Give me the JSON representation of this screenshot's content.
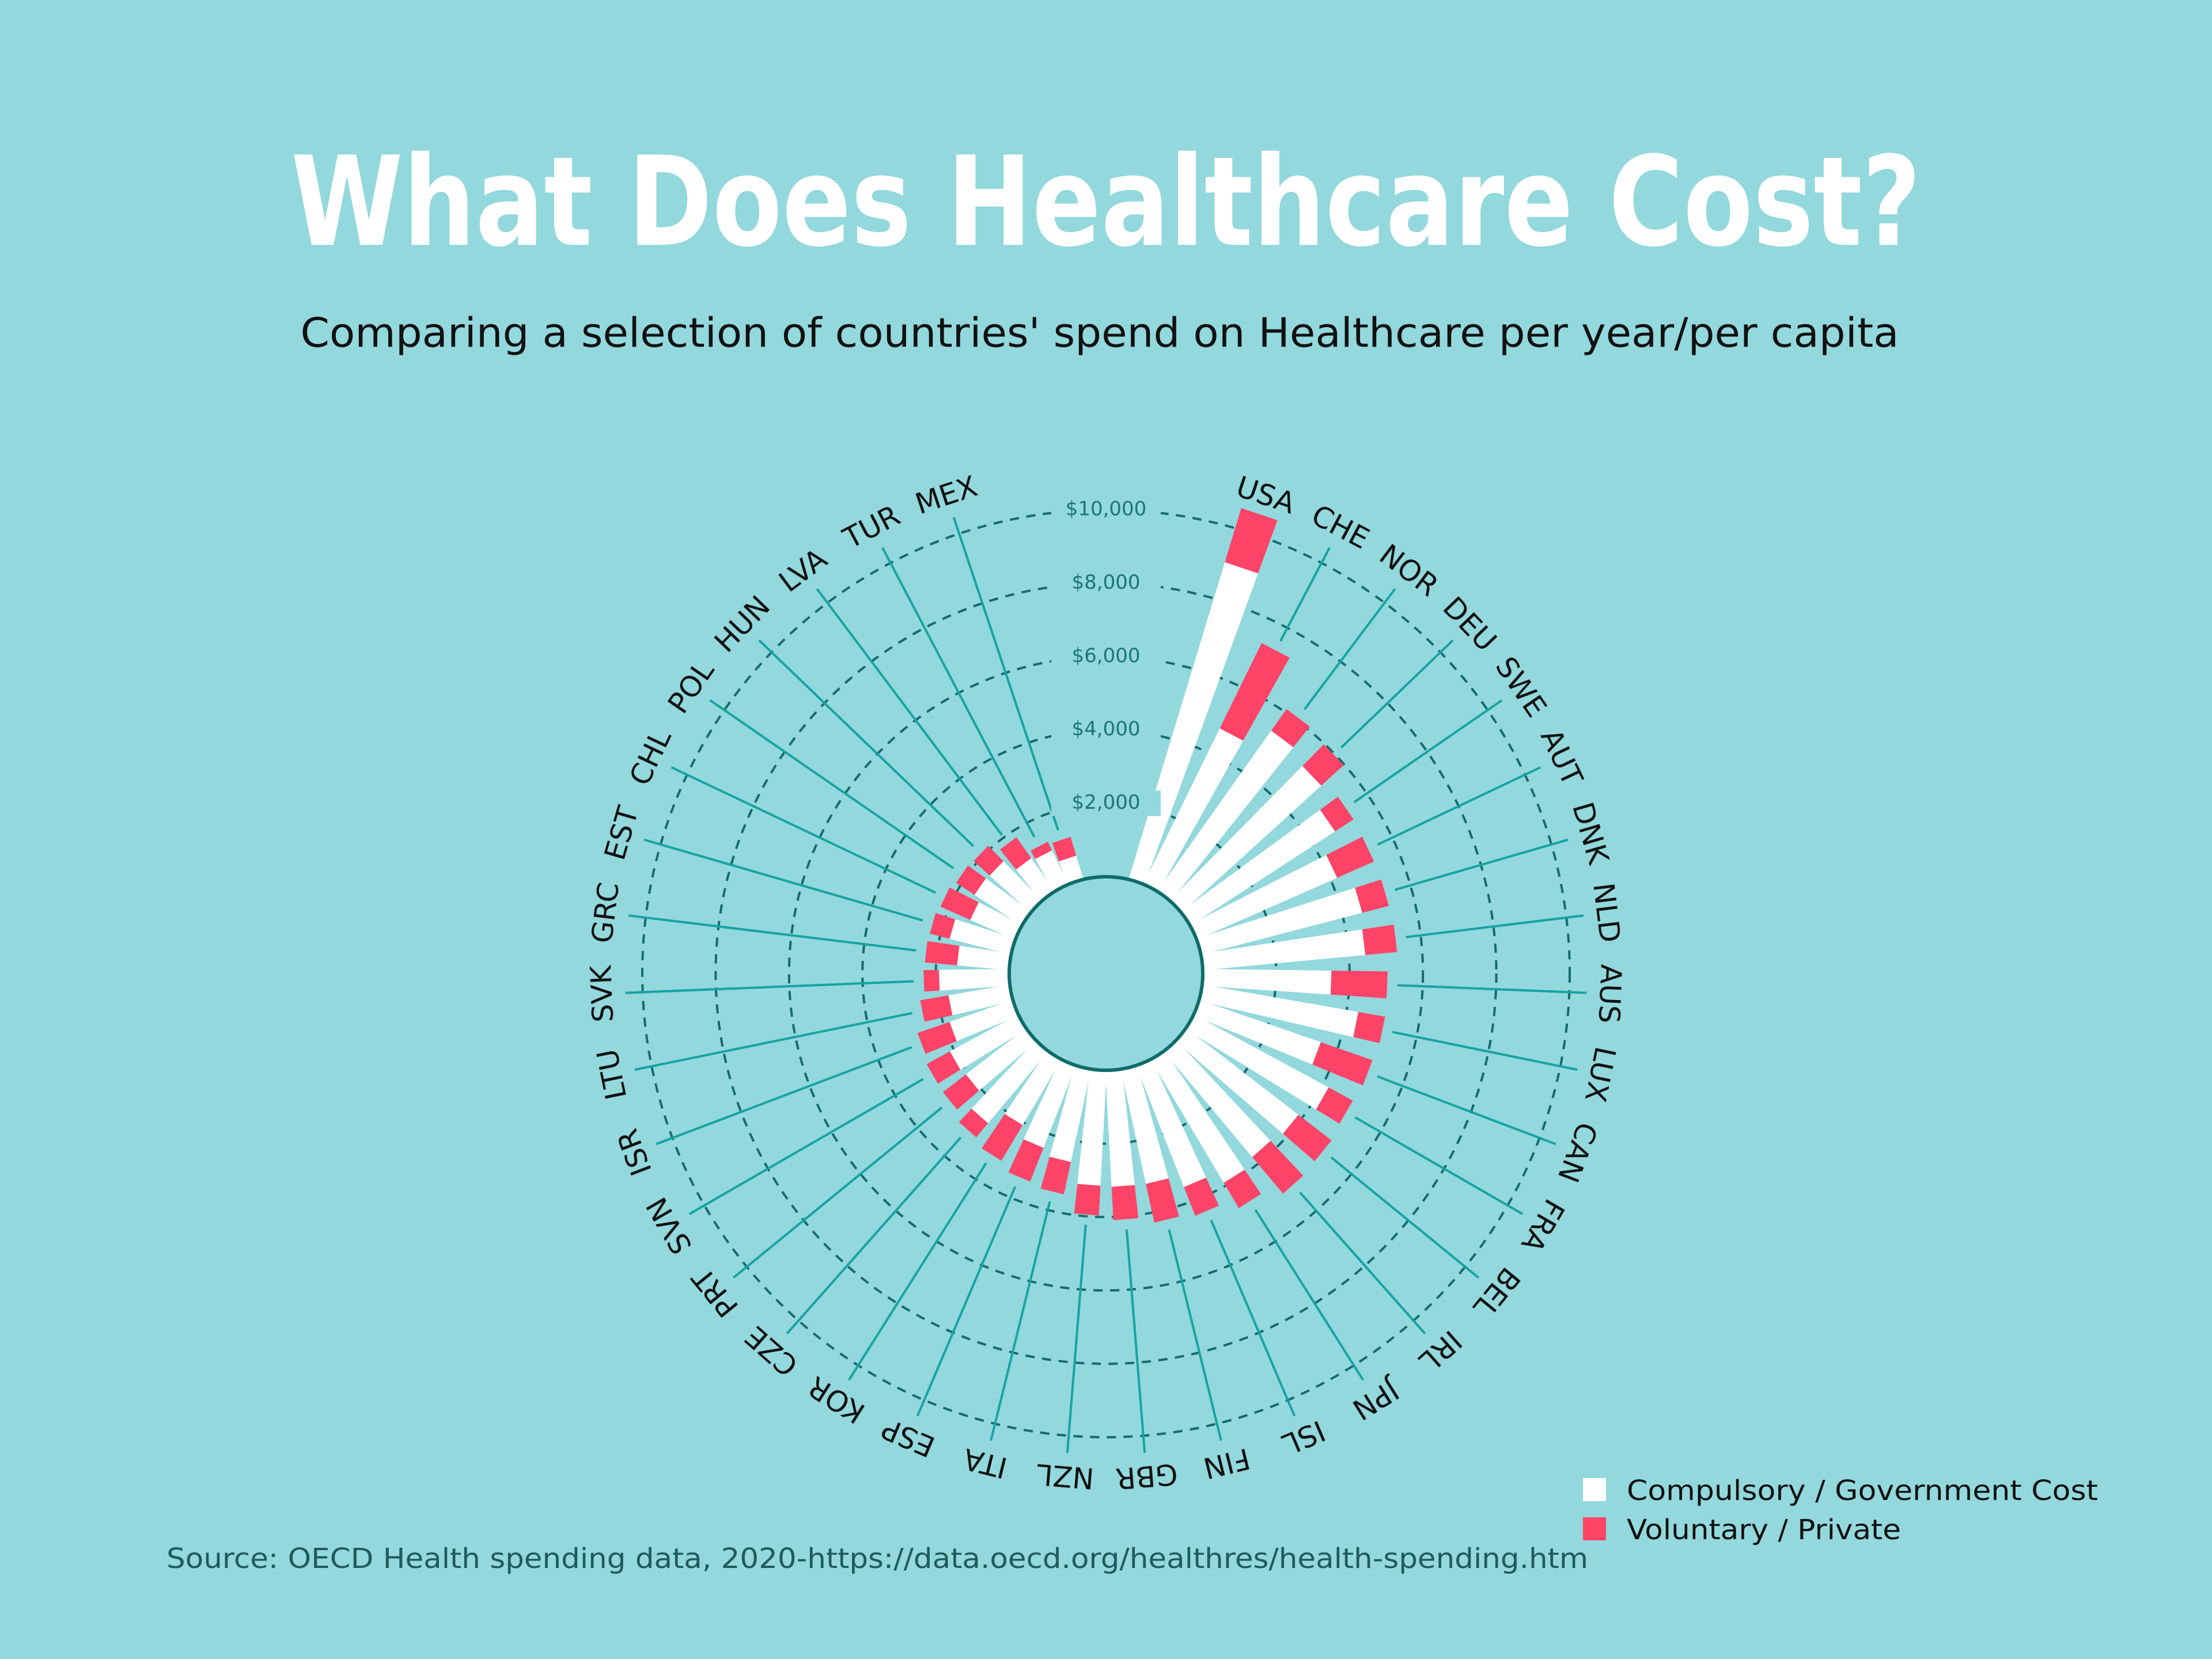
{
  "title": "What Does Healthcare Cost?",
  "subtitle": "Comparing a selection of countries' spend on Healthcare per year/per capita",
  "source": "Source: OECD Health spending data, 2020-https://data.oecd.org/healthres/health-spending.htm",
  "colors": {
    "background": "#93d8dc",
    "compulsory": "#ffffff",
    "voluntary": "#ff4468",
    "spoke": "#16a3a3",
    "ring": "#146b6b"
  },
  "chart_data": {
    "type": "bar",
    "layout": "radial stacked",
    "title": "What Does Healthcare Cost?",
    "subtitle": "Comparing a selection of countries' spend on Healthcare per year/per capita",
    "categories": [
      "USA",
      "CHE",
      "NOR",
      "DEU",
      "SWE",
      "AUT",
      "DNK",
      "NLD",
      "AUS",
      "LUX",
      "CAN",
      "FRA",
      "BEL",
      "IRL",
      "JPN",
      "ISL",
      "FIN",
      "GBR",
      "NZL",
      "ITA",
      "ESP",
      "KOR",
      "CZE",
      "PRT",
      "SVN",
      "ISR",
      "LTU",
      "SVK",
      "GRC",
      "EST",
      "CHL",
      "POL",
      "HUN",
      "LVA",
      "TUR",
      "MEX"
    ],
    "series": [
      {
        "name": "Compulsory / Government Cost",
        "color": "#ffffff",
        "values": [
          9020,
          4720,
          5360,
          5140,
          4700,
          4170,
          4530,
          4440,
          3500,
          4310,
          3500,
          4170,
          3860,
          3750,
          3900,
          3550,
          3190,
          3170,
          3140,
          2580,
          2400,
          2070,
          2550,
          2060,
          2110,
          1820,
          1690,
          1910,
          1420,
          1720,
          1330,
          1530,
          1500,
          1100,
          1020,
          670
        ]
      },
      {
        "name": "Voluntary / Private",
        "color": "#ff4468",
        "values": [
          1540,
          2590,
          720,
          830,
          600,
          1100,
          750,
          870,
          1530,
          740,
          1490,
          750,
          1140,
          1300,
          800,
          840,
          1080,
          910,
          810,
          900,
          990,
          1130,
          500,
          790,
          720,
          920,
          780,
          420,
          880,
          560,
          890,
          600,
          590,
          700,
          260,
          530
        ]
      }
    ],
    "radial_ticks": [
      2000,
      4000,
      6000,
      8000,
      10000
    ],
    "radial_tick_labels": [
      "$2,000",
      "$4,000",
      "$6,000",
      "$8,000",
      "$10,000"
    ],
    "radial_range": [
      0,
      10000
    ],
    "grid": true,
    "legend_position": "bottom-right"
  },
  "legend": {
    "items": [
      {
        "label": "Compulsory / Government Cost",
        "color": "#ffffff"
      },
      {
        "label": "Voluntary / Private",
        "color": "#ff4468"
      }
    ]
  }
}
